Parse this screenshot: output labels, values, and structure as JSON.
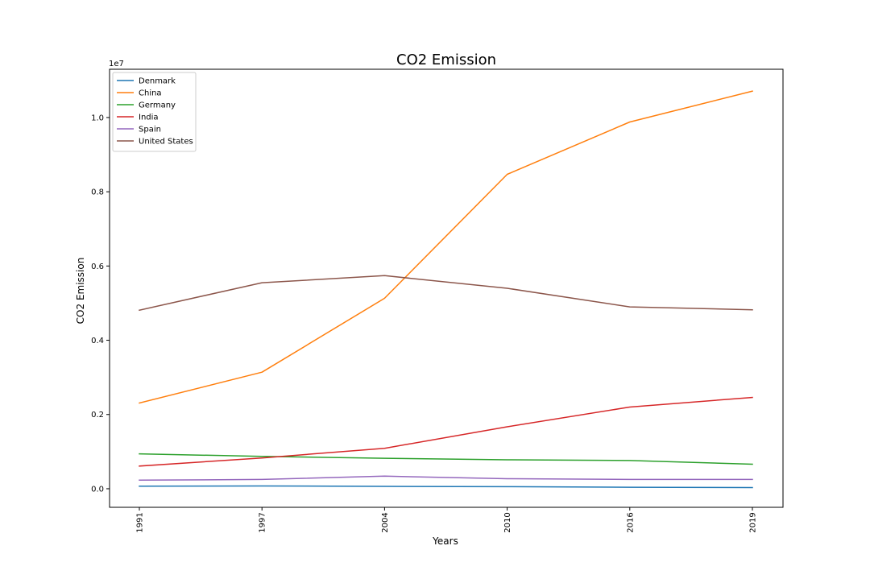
{
  "chart_data": {
    "type": "line",
    "title": "CO2 Emission",
    "xlabel": "Years",
    "ylabel": "CO2 Emission",
    "y_offset_label": "1e7",
    "x": [
      "1991",
      "1997",
      "2004",
      "2010",
      "2016",
      "2019"
    ],
    "ylim": [
      -500000,
      11300000
    ],
    "yticks": [
      0,
      2000000,
      4000000,
      6000000,
      8000000,
      10000000
    ],
    "ytick_labels": [
      "0.0",
      "0.2",
      "0.4",
      "0.6",
      "0.8",
      "1.0"
    ],
    "grid": false,
    "legend_position": "top-left",
    "series": [
      {
        "name": "Denmark",
        "color": "#1f77b4",
        "values": [
          70000,
          75000,
          63000,
          55000,
          40000,
          32000
        ]
      },
      {
        "name": "China",
        "color": "#ff7f0e",
        "values": [
          2310000,
          3140000,
          5130000,
          8470000,
          9880000,
          10710000
        ]
      },
      {
        "name": "Germany",
        "color": "#2ca02c",
        "values": [
          940000,
          870000,
          820000,
          780000,
          760000,
          660000
        ]
      },
      {
        "name": "India",
        "color": "#d62728",
        "values": [
          610000,
          830000,
          1090000,
          1670000,
          2200000,
          2460000
        ]
      },
      {
        "name": "Spain",
        "color": "#9467bd",
        "values": [
          230000,
          250000,
          340000,
          270000,
          250000,
          250000
        ]
      },
      {
        "name": "United States",
        "color": "#8c564b",
        "values": [
          4810000,
          5550000,
          5740000,
          5400000,
          4900000,
          4820000
        ]
      }
    ]
  }
}
